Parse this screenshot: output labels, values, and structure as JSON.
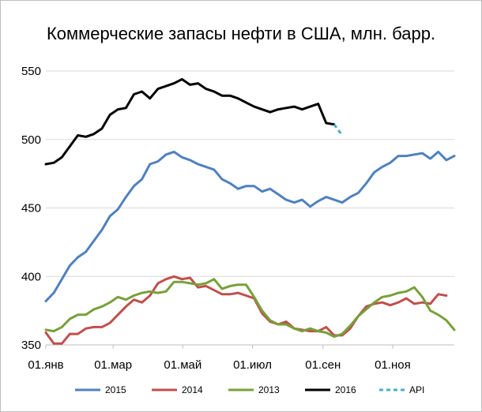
{
  "colors": {
    "2015": "#4f81bd",
    "2014": "#c0504d",
    "2013": "#77a03a",
    "2016": "#000000",
    "API": "#4bacc6",
    "grid": "#d9d9d9",
    "border": "#bfbfbf"
  },
  "chart_data": {
    "type": "line",
    "title": "Коммерческие запасы нефти в США, млн. барр.",
    "ylim": [
      350,
      550
    ],
    "yticks": [
      "350",
      "400",
      "450",
      "500",
      "550"
    ],
    "xlim": [
      1,
      52
    ],
    "xticks": [
      {
        "label": "01.янв",
        "x": 1
      },
      {
        "label": "01.мар",
        "x": 9.4
      },
      {
        "label": "01.май",
        "x": 18.1
      },
      {
        "label": "01.июл",
        "x": 26.8
      },
      {
        "label": "01.сен",
        "x": 35.6
      },
      {
        "label": "01.ноя",
        "x": 44.3
      }
    ],
    "grid": true,
    "legend_position": "bottom",
    "series": [
      {
        "name": "2015",
        "key": "2015",
        "dash": false,
        "points": [
          [
            1,
            382
          ],
          [
            2,
            388
          ],
          [
            3,
            398
          ],
          [
            4,
            408
          ],
          [
            5,
            414
          ],
          [
            6,
            418
          ],
          [
            7,
            426
          ],
          [
            8,
            434
          ],
          [
            9,
            444
          ],
          [
            10,
            449
          ],
          [
            11,
            458
          ],
          [
            12,
            466
          ],
          [
            13,
            471
          ],
          [
            14,
            482
          ],
          [
            15,
            484
          ],
          [
            16,
            489
          ],
          [
            17,
            491
          ],
          [
            18,
            487
          ],
          [
            19,
            485
          ],
          [
            20,
            482
          ],
          [
            21,
            480
          ],
          [
            22,
            478
          ],
          [
            23,
            471
          ],
          [
            24,
            468
          ],
          [
            25,
            464
          ],
          [
            26,
            466
          ],
          [
            27,
            466
          ],
          [
            28,
            462
          ],
          [
            29,
            464
          ],
          [
            30,
            460
          ],
          [
            31,
            456
          ],
          [
            32,
            454
          ],
          [
            33,
            456
          ],
          [
            34,
            451
          ],
          [
            35,
            455
          ],
          [
            36,
            458
          ],
          [
            37,
            456
          ],
          [
            38,
            454
          ],
          [
            39,
            458
          ],
          [
            40,
            461
          ],
          [
            41,
            468
          ],
          [
            42,
            476
          ],
          [
            43,
            480
          ],
          [
            44,
            483
          ],
          [
            45,
            488
          ],
          [
            46,
            488
          ],
          [
            47,
            489
          ],
          [
            48,
            490
          ],
          [
            49,
            486
          ],
          [
            50,
            491
          ],
          [
            51,
            485
          ],
          [
            52,
            488
          ]
        ]
      },
      {
        "name": "2014",
        "key": "2014",
        "dash": false,
        "points": [
          [
            1,
            359
          ],
          [
            2,
            351
          ],
          [
            3,
            351
          ],
          [
            4,
            358
          ],
          [
            5,
            358
          ],
          [
            6,
            362
          ],
          [
            7,
            363
          ],
          [
            8,
            363
          ],
          [
            9,
            366
          ],
          [
            10,
            372
          ],
          [
            11,
            378
          ],
          [
            12,
            383
          ],
          [
            13,
            381
          ],
          [
            14,
            386
          ],
          [
            15,
            395
          ],
          [
            16,
            398
          ],
          [
            17,
            400
          ],
          [
            18,
            398
          ],
          [
            19,
            399
          ],
          [
            20,
            392
          ],
          [
            21,
            393
          ],
          [
            22,
            390
          ],
          [
            23,
            387
          ],
          [
            24,
            387
          ],
          [
            25,
            388
          ],
          [
            26,
            386
          ],
          [
            27,
            384
          ],
          [
            28,
            373
          ],
          [
            29,
            367
          ],
          [
            30,
            365
          ],
          [
            31,
            367
          ],
          [
            32,
            362
          ],
          [
            33,
            361
          ],
          [
            34,
            360
          ],
          [
            35,
            360
          ],
          [
            36,
            363
          ],
          [
            37,
            357
          ],
          [
            38,
            357
          ],
          [
            39,
            362
          ],
          [
            40,
            371
          ],
          [
            41,
            378
          ],
          [
            42,
            380
          ],
          [
            43,
            381
          ],
          [
            44,
            379
          ],
          [
            45,
            381
          ],
          [
            46,
            384
          ],
          [
            47,
            380
          ],
          [
            48,
            381
          ],
          [
            49,
            380
          ],
          [
            50,
            387
          ],
          [
            51,
            386
          ]
        ]
      },
      {
        "name": "2013",
        "key": "2013",
        "dash": false,
        "points": [
          [
            1,
            361
          ],
          [
            2,
            360
          ],
          [
            3,
            363
          ],
          [
            4,
            369
          ],
          [
            5,
            372
          ],
          [
            6,
            372
          ],
          [
            7,
            376
          ],
          [
            8,
            378
          ],
          [
            9,
            381
          ],
          [
            10,
            385
          ],
          [
            11,
            383
          ],
          [
            12,
            386
          ],
          [
            13,
            388
          ],
          [
            14,
            389
          ],
          [
            15,
            388
          ],
          [
            16,
            389
          ],
          [
            17,
            396
          ],
          [
            18,
            396
          ],
          [
            19,
            395
          ],
          [
            20,
            394
          ],
          [
            21,
            395
          ],
          [
            22,
            398
          ],
          [
            23,
            391
          ],
          [
            24,
            393
          ],
          [
            25,
            394
          ],
          [
            26,
            394
          ],
          [
            27,
            385
          ],
          [
            28,
            375
          ],
          [
            29,
            368
          ],
          [
            30,
            365
          ],
          [
            31,
            365
          ],
          [
            32,
            362
          ],
          [
            33,
            360
          ],
          [
            34,
            362
          ],
          [
            35,
            360
          ],
          [
            36,
            359
          ],
          [
            37,
            356
          ],
          [
            38,
            358
          ],
          [
            39,
            364
          ],
          [
            40,
            371
          ],
          [
            41,
            376
          ],
          [
            42,
            381
          ],
          [
            43,
            385
          ],
          [
            44,
            386
          ],
          [
            45,
            388
          ],
          [
            46,
            389
          ],
          [
            47,
            392
          ],
          [
            48,
            385
          ],
          [
            49,
            375
          ],
          [
            50,
            372
          ],
          [
            51,
            368
          ],
          [
            52,
            361
          ]
        ]
      },
      {
        "name": "2016",
        "key": "2016",
        "dash": false,
        "points": [
          [
            1,
            482
          ],
          [
            2,
            483
          ],
          [
            3,
            487
          ],
          [
            4,
            495
          ],
          [
            5,
            503
          ],
          [
            6,
            502
          ],
          [
            7,
            504
          ],
          [
            8,
            508
          ],
          [
            9,
            518
          ],
          [
            10,
            522
          ],
          [
            11,
            523
          ],
          [
            12,
            533
          ],
          [
            13,
            535
          ],
          [
            14,
            530
          ],
          [
            15,
            537
          ],
          [
            16,
            539
          ],
          [
            17,
            541
          ],
          [
            18,
            544
          ],
          [
            19,
            540
          ],
          [
            20,
            541
          ],
          [
            21,
            537
          ],
          [
            22,
            535
          ],
          [
            23,
            532
          ],
          [
            24,
            532
          ],
          [
            25,
            530
          ],
          [
            26,
            527
          ],
          [
            27,
            524
          ],
          [
            28,
            522
          ],
          [
            29,
            520
          ],
          [
            30,
            522
          ],
          [
            31,
            523
          ],
          [
            32,
            524
          ],
          [
            33,
            522
          ],
          [
            34,
            524
          ],
          [
            35,
            526
          ],
          [
            36,
            512
          ],
          [
            37,
            511
          ]
        ]
      },
      {
        "name": "API",
        "key": "API",
        "dash": true,
        "points": [
          [
            37,
            511
          ],
          [
            38,
            503
          ]
        ]
      }
    ]
  }
}
